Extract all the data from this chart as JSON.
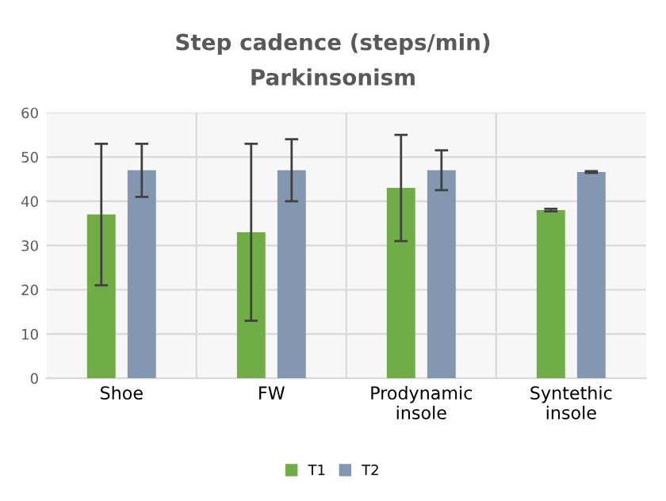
{
  "chart_data": {
    "type": "bar",
    "title": "Step cadence (steps/min)",
    "subtitle": "Parkinsonism",
    "categories": [
      "Shoe",
      "FW",
      "Prodynamic\ninsole",
      "Syntethic\ninsole"
    ],
    "series": [
      {
        "name": "T1",
        "color": "#70ad47",
        "values": [
          37,
          33,
          43,
          38
        ],
        "errors": [
          16,
          20,
          12,
          0.3
        ]
      },
      {
        "name": "T2",
        "color": "#8497b0",
        "values": [
          47,
          47,
          47,
          46.6
        ],
        "errors": [
          6,
          7,
          4.5,
          0.2
        ]
      }
    ],
    "ylim": [
      0,
      60
    ],
    "yticks": [
      0,
      10,
      20,
      30,
      40,
      50,
      60
    ],
    "grid": true,
    "legend": "bottom"
  }
}
